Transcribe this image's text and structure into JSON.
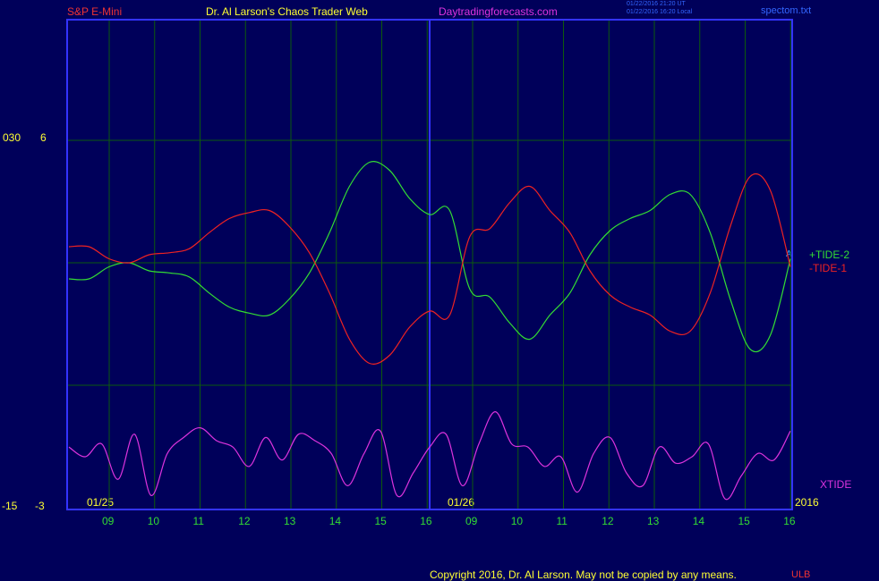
{
  "header": {
    "instrument": "S&P E-Mini",
    "title": "Dr. Al Larson's Chaos Trader Web",
    "site": "Daytradingforecasts.com",
    "stamp_ut": "01/22/2016 21:20 UT",
    "stamp_local": "01/22/2016 16:20 Local",
    "file": "spectom.txt"
  },
  "footer": {
    "copyright": "Copyright 2016, Dr. Al Larson. May not be copied by any means.",
    "mark": "ULB"
  },
  "colors": {
    "background": "#00005a",
    "frame": "#3333ff",
    "grid": "#0d5a0d",
    "tide2": "#33dd33",
    "tide1": "#ee2222",
    "xtide": "#dd33dd",
    "label_yellow": "#ffff33",
    "tick_green": "#33dd33"
  },
  "chart_data": {
    "type": "line",
    "ylabels": {
      "upper_outer": "030",
      "upper_inner": "6",
      "lower_outer": "-15",
      "lower_inner": "-3"
    },
    "date_labels": [
      "01/25",
      "01/26"
    ],
    "year_label": "2016",
    "x_ticks": [
      "09",
      "10",
      "11",
      "12",
      "13",
      "14",
      "15",
      "16",
      "09",
      "10",
      "11",
      "12",
      "13",
      "14",
      "15",
      "16"
    ],
    "marker": "A",
    "series": [
      {
        "name": "+TIDE-2",
        "values": [
          -0.8,
          -0.8,
          -0.2,
          0.0,
          -0.4,
          -0.5,
          -0.7,
          -1.5,
          -2.2,
          -2.5,
          -2.6,
          -1.8,
          -0.5,
          1.5,
          3.8,
          5.0,
          4.6,
          3.2,
          2.4,
          2.6,
          -1.3,
          -1.7,
          -3.0,
          -3.8,
          -2.6,
          -1.5,
          0.4,
          1.6,
          2.2,
          2.6,
          3.4,
          3.4,
          1.5,
          -1.8,
          -4.3,
          -3.6,
          0.2
        ]
      },
      {
        "name": "-TIDE-1",
        "values": [
          0.8,
          0.8,
          0.2,
          0.0,
          0.4,
          0.5,
          0.7,
          1.5,
          2.2,
          2.5,
          2.6,
          1.8,
          0.5,
          -1.5,
          -3.8,
          -5.0,
          -4.6,
          -3.2,
          -2.4,
          -2.6,
          1.3,
          1.7,
          3.0,
          3.8,
          2.6,
          1.5,
          -0.4,
          -1.6,
          -2.2,
          -2.6,
          -3.4,
          -3.4,
          -1.5,
          1.8,
          4.3,
          3.6,
          -0.2
        ]
      },
      {
        "name": "XTIDE",
        "values": [
          -1.8,
          -1.5,
          -1.9,
          -0.8,
          -2.2,
          -0.3,
          -1.6,
          -2.1,
          -2.4,
          -2.0,
          -1.8,
          -1.2,
          -2.1,
          -1.4,
          -2.2,
          -2.0,
          -1.6,
          -0.6,
          -1.6,
          -2.3,
          -0.3,
          -1.0,
          -1.8,
          -2.2,
          -0.6,
          -1.9,
          -2.9,
          -1.9,
          -1.8,
          -1.2,
          -1.5,
          -0.4,
          -1.6,
          -2.1,
          -1.0,
          -0.6,
          -1.8,
          -1.3,
          -1.5,
          -1.9,
          -0.2,
          -0.9,
          -1.6,
          -1.4,
          -2.3
        ]
      }
    ]
  }
}
